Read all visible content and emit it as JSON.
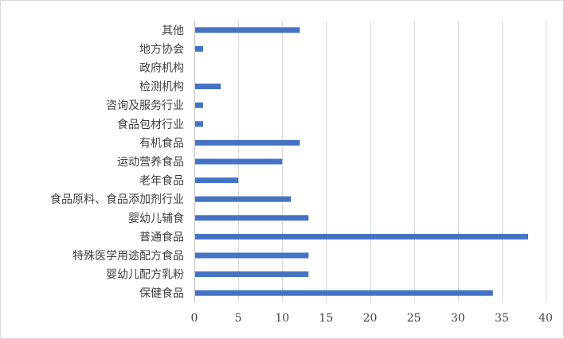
{
  "chart_data": {
    "type": "bar",
    "orientation": "horizontal",
    "categories": [
      "保健食品",
      "婴幼儿配方乳粉",
      "特殊医学用途配方食品",
      "普通食品",
      "婴幼儿辅食",
      "食品原料、食品添加剂行业",
      "老年食品",
      "运动营养食品",
      "有机食品",
      "食品包材行业",
      "咨询及服务行业",
      "检测机构",
      "政府机构",
      "地方协会",
      "其他"
    ],
    "values": [
      34,
      13,
      13,
      38,
      13,
      11,
      5,
      10,
      12,
      1,
      1,
      3,
      0,
      1,
      12
    ],
    "xlim": [
      0,
      40
    ],
    "xticks": [
      "0",
      "5",
      "10",
      "15",
      "20",
      "25",
      "30",
      "35",
      "40"
    ],
    "grid": true,
    "legend": "none",
    "bar_color": "#4472c4",
    "grid_color": "#d9d9d9"
  }
}
